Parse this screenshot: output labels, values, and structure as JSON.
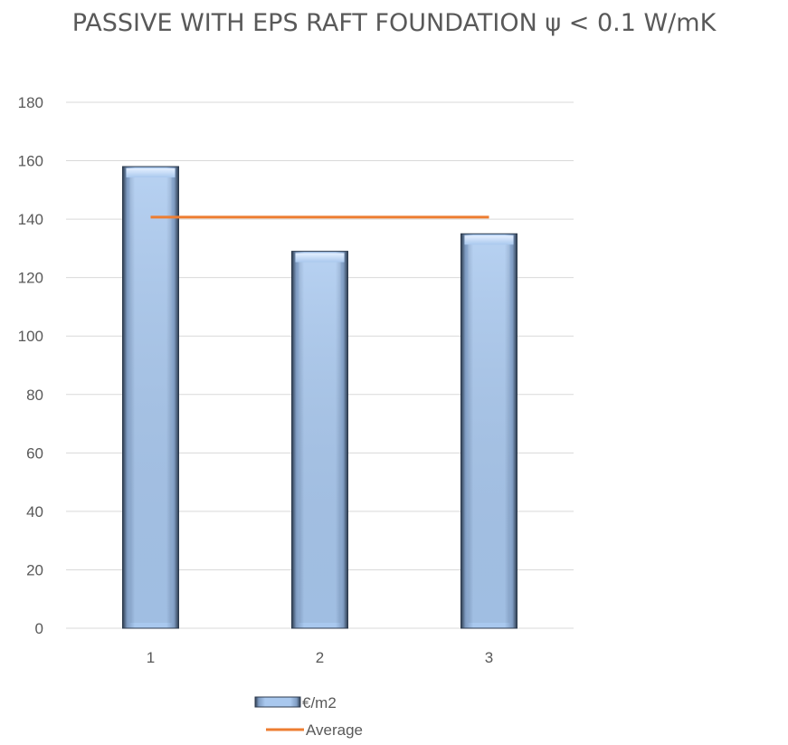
{
  "chart_data": {
    "type": "bar",
    "title": "PASSIVE WITH EPS RAFT FOUNDATION ψ < 0.1 W/mK",
    "xlabel": "",
    "ylabel": "",
    "categories": [
      "1",
      "2",
      "3"
    ],
    "series": [
      {
        "name": "€/m2",
        "type": "bar",
        "values": [
          158,
          129,
          135
        ]
      },
      {
        "name": "Average",
        "type": "line",
        "values": [
          140.7,
          140.7,
          140.7
        ]
      }
    ],
    "ylim": [
      0,
      180
    ],
    "yticks": [
      0,
      20,
      40,
      60,
      80,
      100,
      120,
      140,
      160,
      180
    ],
    "grid": true,
    "legend": "bottom",
    "colors": {
      "bar_light": "#bcd6f6",
      "bar_mid": "#9dbfea",
      "bar_edge": "#2c3a4d",
      "average_line": "#ed7d31",
      "grid": "#d9d9d9",
      "text": "#595959"
    }
  }
}
